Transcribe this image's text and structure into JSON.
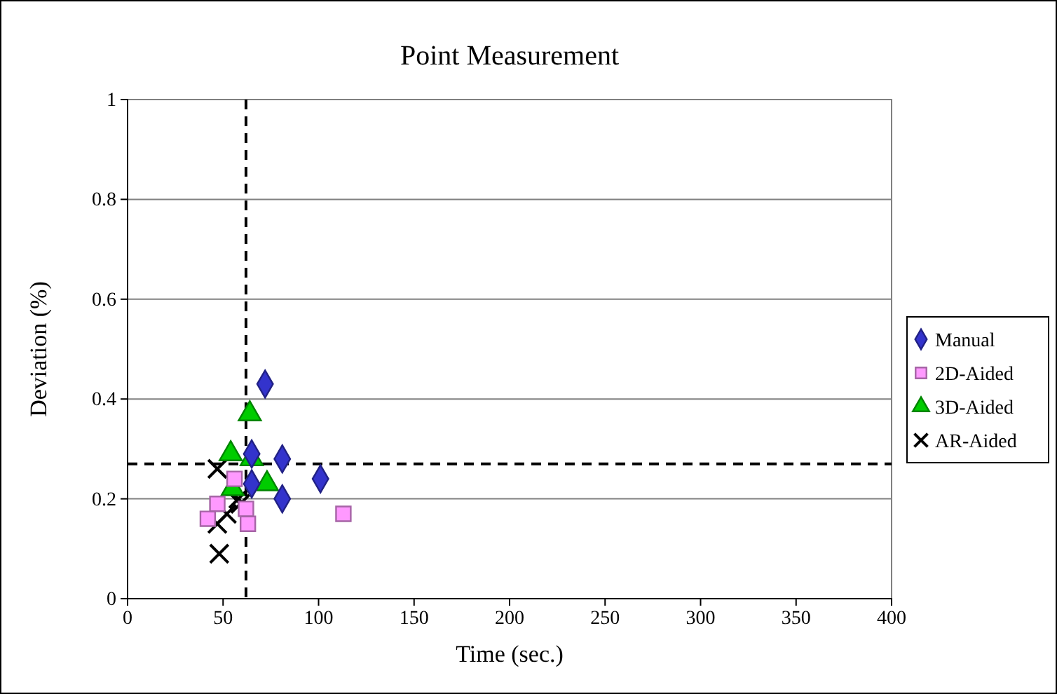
{
  "chart_data": {
    "type": "scatter",
    "title": "Point Measurement",
    "xlabel": "Time (sec.)",
    "ylabel": "Deviation (%)",
    "xlim": [
      0,
      400
    ],
    "xticks": [
      0,
      50,
      100,
      150,
      200,
      250,
      300,
      350,
      400
    ],
    "ylim": [
      0,
      1
    ],
    "yticks": [
      0,
      0.2,
      0.4,
      0.6,
      0.8,
      1
    ],
    "grid": "y",
    "legend": "right",
    "ref_lines": [
      {
        "axis": "x",
        "value": 62,
        "line_style": "dashed",
        "color": "#000000"
      },
      {
        "axis": "y",
        "value": 0.27,
        "line_style": "dashed",
        "color": "#000000"
      }
    ],
    "series": [
      {
        "name": "Manual",
        "color": "#3333cc",
        "marker": "diamond",
        "x": [
          72,
          65,
          81,
          65,
          81,
          101
        ],
        "values": [
          0.43,
          0.29,
          0.28,
          0.23,
          0.2,
          0.24
        ]
      },
      {
        "name": "2D-Aided",
        "color": "#ff99ff",
        "marker": "square",
        "x": [
          42,
          47,
          56,
          62,
          63,
          113
        ],
        "values": [
          0.16,
          0.19,
          0.24,
          0.18,
          0.15,
          0.17
        ]
      },
      {
        "name": "3D-Aided",
        "color": "#00cc00",
        "marker": "triangle",
        "x": [
          64,
          54,
          65,
          73,
          55
        ],
        "values": [
          0.37,
          0.29,
          0.28,
          0.23,
          0.22
        ]
      },
      {
        "name": "AR-Aided",
        "color": "#000000",
        "marker": "cross",
        "x": [
          47,
          47,
          48,
          52,
          58,
          59
        ],
        "values": [
          0.26,
          0.15,
          0.09,
          0.17,
          0.2,
          0.19
        ]
      }
    ]
  }
}
